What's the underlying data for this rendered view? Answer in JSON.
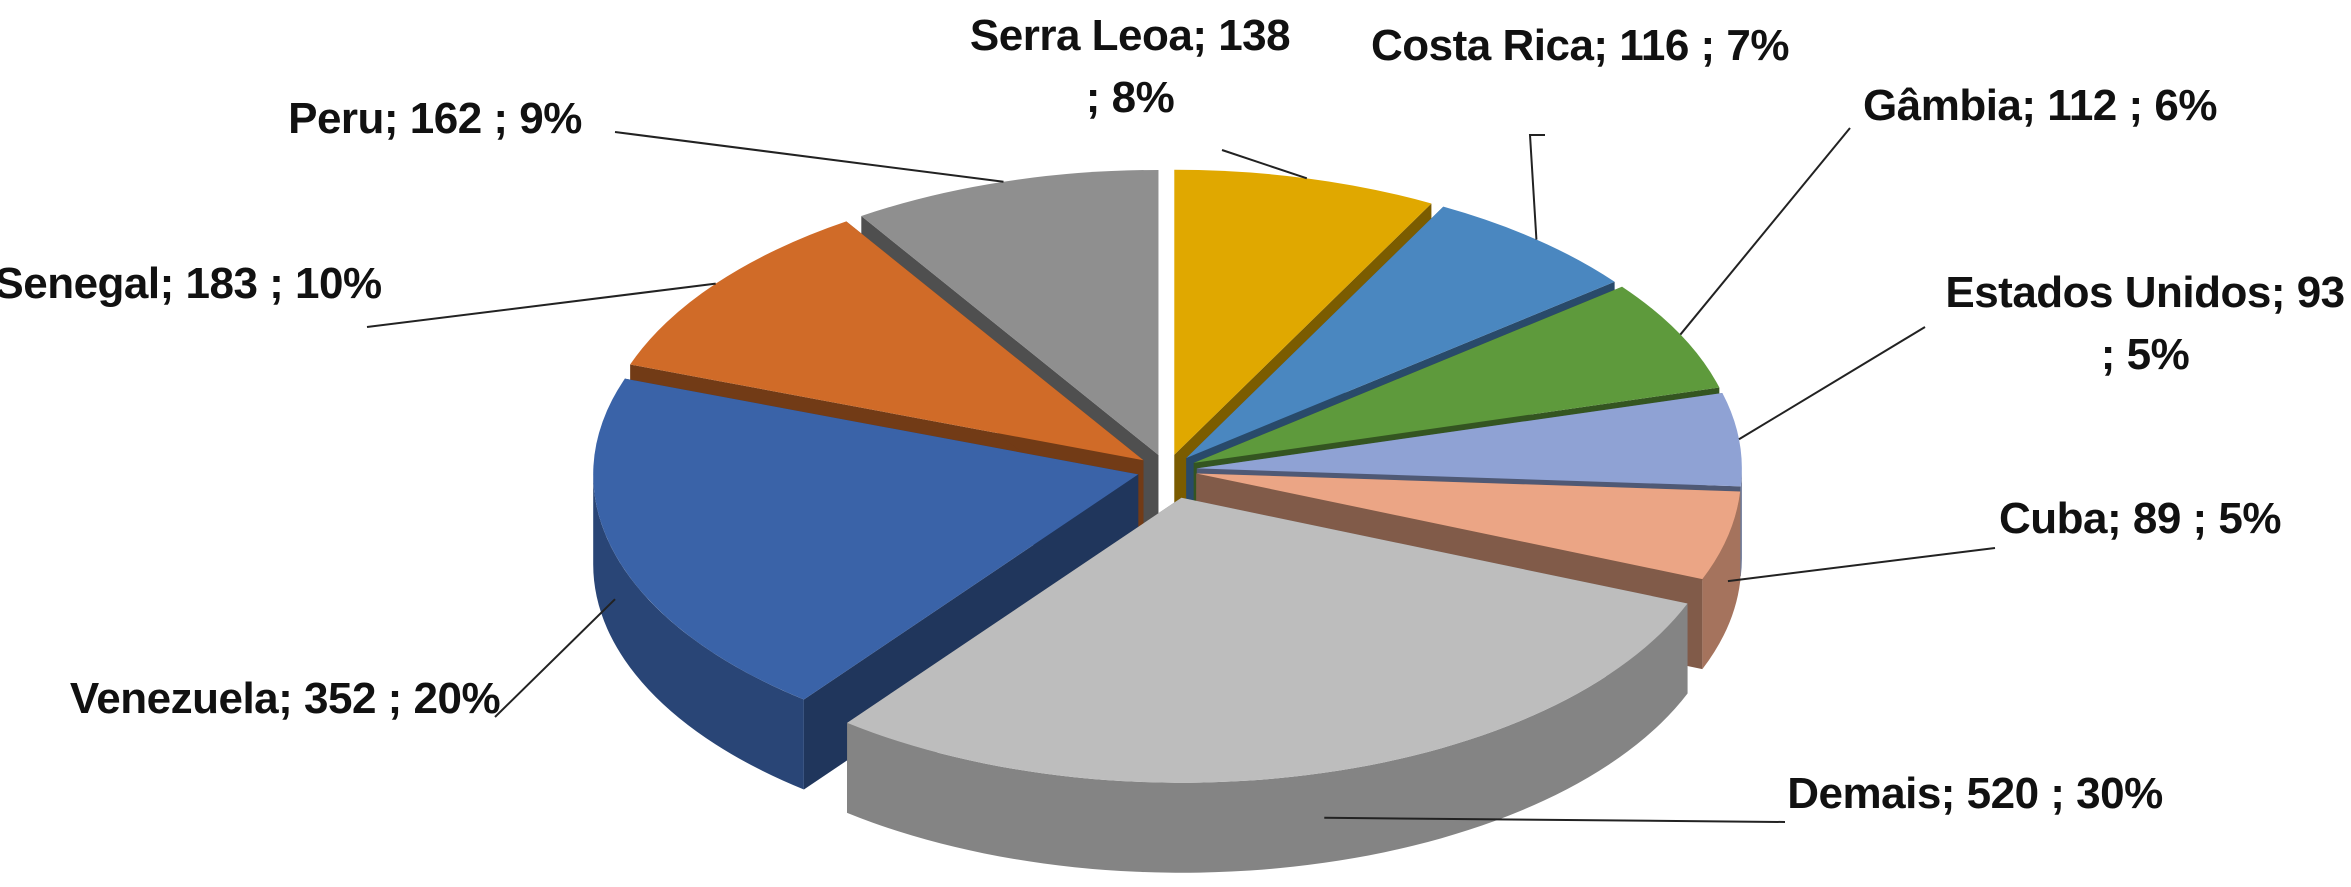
{
  "chart_data": {
    "type": "pie",
    "3d": true,
    "categories": [
      "Serra Leoa",
      "Costa Rica",
      "Gâmbia",
      "Estados Unidos",
      "Cuba",
      "Demais",
      "Venezuela",
      "Senegal",
      "Peru"
    ],
    "values": [
      138,
      116,
      112,
      93,
      89,
      520,
      352,
      183,
      162
    ],
    "value_labels": [
      "Serra Leoa; 138 ; 8%",
      "Costa Rica; 116 ; 7%",
      "Gâmbia; 112 ; 6%",
      "Estados Unidos; 93 ; 5%",
      "Cuba; 89 ; 5%",
      "Demais; 520 ; 30%",
      "Venezuela; 352 ; 20%",
      "Senegal; 183 ; 10%",
      "Peru; 162 ; 9%"
    ],
    "colors": [
      "#e0a800",
      "#4a87c0",
      "#5e9a3c",
      "#8fa2d4",
      "#eba585",
      "#bdbdbd",
      "#3a63a8",
      "#d06b28",
      "#8f8f8f"
    ]
  }
}
